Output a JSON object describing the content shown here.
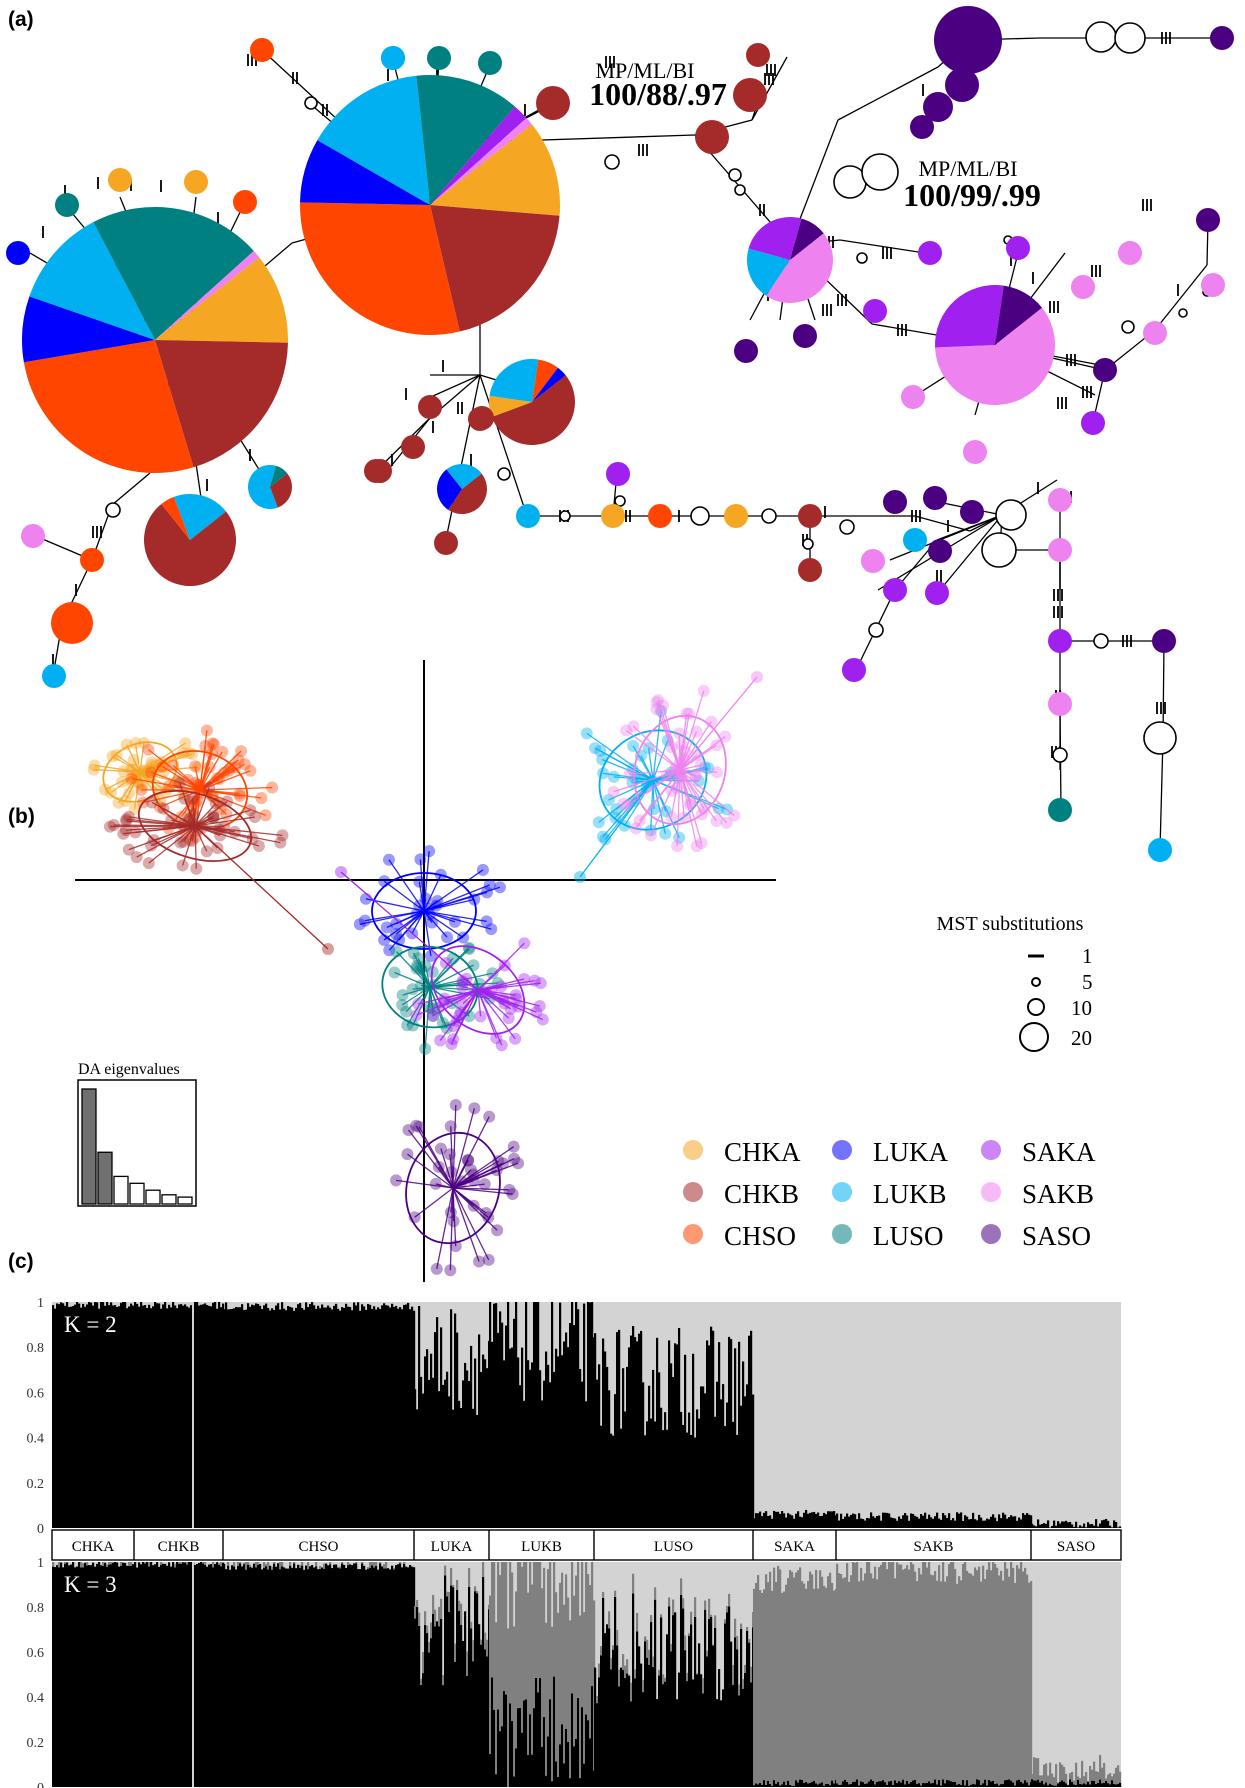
{
  "panels": {
    "a": "(a)",
    "b": "(b)",
    "c": "(c)"
  },
  "support": [
    {
      "label": "MP/ML/BI",
      "value": "100/88/.97"
    },
    {
      "label": "MP/ML/BI",
      "value": "100/99/.99"
    }
  ],
  "mst_legend": {
    "title": "MST substitutions",
    "items": [
      {
        "value": "1",
        "kind": "bar"
      },
      {
        "value": "5",
        "kind": "small"
      },
      {
        "value": "10",
        "kind": "medium"
      },
      {
        "value": "20",
        "kind": "large"
      }
    ]
  },
  "eigen": {
    "title": "DA eigenvalues",
    "values": [
      10,
      4.5,
      2.4,
      1.8,
      1.2,
      0.8,
      0.6
    ],
    "retained": 2
  },
  "populations": [
    {
      "code": "CHKA",
      "color": "#F5A623"
    },
    {
      "code": "CHKB",
      "color": "#A52A2A"
    },
    {
      "code": "CHSO",
      "color": "#FF4500"
    },
    {
      "code": "LUKA",
      "color": "#0000FF"
    },
    {
      "code": "LUKB",
      "color": "#00B0F0"
    },
    {
      "code": "LUSO",
      "color": "#008080"
    },
    {
      "code": "SAKA",
      "color": "#A020F0"
    },
    {
      "code": "SAKB",
      "color": "#EE82EE"
    },
    {
      "code": "SASO",
      "color": "#4B0082"
    }
  ],
  "chart_data": [
    {
      "type": "bar",
      "title": "K = 2",
      "ylim": [
        0,
        1
      ],
      "yticks": [
        "0",
        "0.2",
        "0.4",
        "0.6",
        "0.8",
        "1"
      ],
      "categories": [
        "CHKA",
        "CHKB",
        "CHSO",
        "LUKA",
        "LUKB",
        "LUSO",
        "SAKA",
        "SAKB",
        "SASO"
      ],
      "cluster_colors": [
        "#000000",
        "#d3d3d3"
      ],
      "mean_membership_cluster1": [
        0.99,
        0.99,
        0.98,
        0.75,
        0.8,
        0.65,
        0.06,
        0.05,
        0.02
      ]
    },
    {
      "type": "bar",
      "title": "K = 3",
      "ylim": [
        0,
        1
      ],
      "yticks": [
        "0",
        "0.2",
        "0.4",
        "0.6",
        "0.8",
        "1"
      ],
      "categories": [
        "CHKA",
        "CHKB",
        "CHSO",
        "LUKA",
        "LUKB",
        "LUSO",
        "SAKA",
        "SAKB",
        "SASO"
      ],
      "cluster_colors": [
        "#000000",
        "#808080",
        "#d3d3d3"
      ],
      "mean_membership": [
        [
          0.99,
          0.0,
          0.01
        ],
        [
          0.99,
          0.0,
          0.01
        ],
        [
          0.98,
          0.0,
          0.02
        ],
        [
          0.7,
          0.05,
          0.25
        ],
        [
          0.25,
          0.7,
          0.05
        ],
        [
          0.62,
          0.03,
          0.35
        ],
        [
          0.02,
          0.9,
          0.08
        ],
        [
          0.02,
          0.95,
          0.03
        ],
        [
          0.02,
          0.05,
          0.93
        ]
      ]
    }
  ]
}
